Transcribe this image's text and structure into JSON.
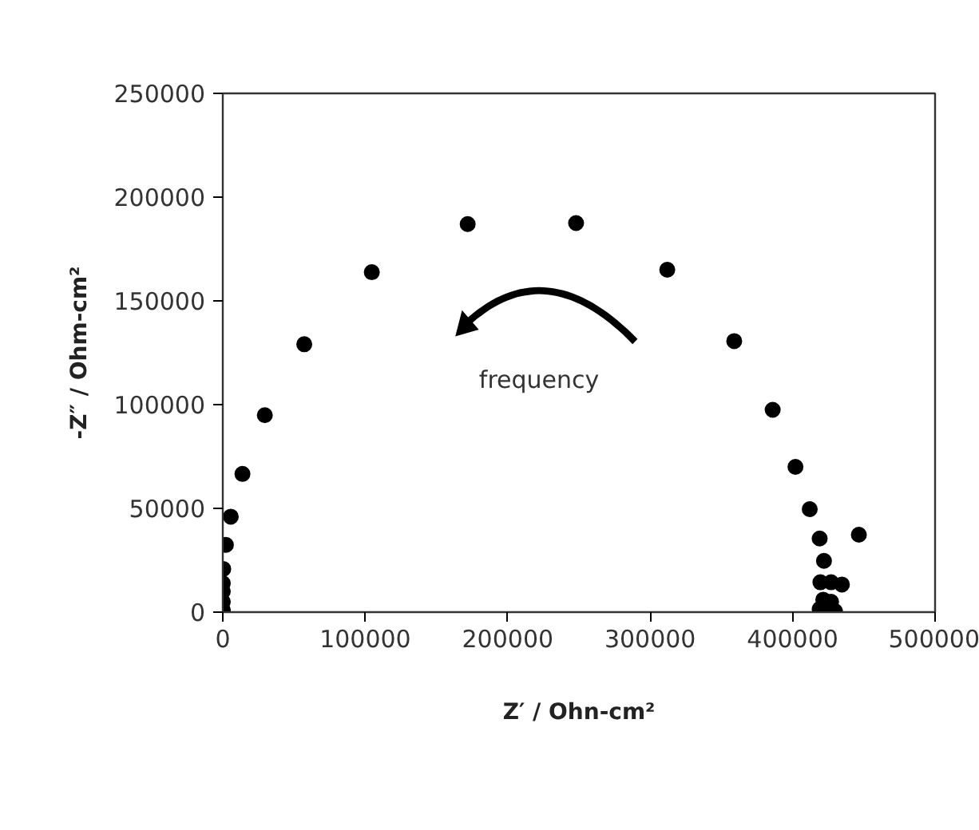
{
  "chart_data": {
    "type": "scatter",
    "xlabel": "Z′ / Ohn-cm²",
    "ylabel": "-Z″ / Ohm-cm²",
    "annotations": [
      "frequency"
    ],
    "x": [
      0,
      0,
      0,
      0,
      300,
      2200,
      5600,
      13800,
      29500,
      57200,
      104600,
      171900,
      248000,
      312000,
      359000,
      386000,
      402000,
      412000,
      419000,
      446500,
      422000,
      419500,
      427000,
      434600,
      421500,
      427000,
      429700,
      419000
    ],
    "series": [
      {
        "color": "#000000",
        "values": [
          1000,
          5000,
          10000,
          13900,
          20800,
          32400,
          46000,
          66600,
          94900,
          129100,
          163800,
          187000,
          187500,
          165000,
          130600,
          97500,
          70000,
          49600,
          35500,
          37300,
          24700,
          14400,
          14400,
          13300,
          6000,
          5000,
          500,
          1500
        ]
      }
    ],
    "marker": "circle",
    "grid": false,
    "xlim": [
      0,
      500000
    ],
    "ylim": [
      0,
      250000
    ],
    "xticks": [
      0,
      100000,
      200000,
      300000,
      400000,
      500000
    ],
    "yticks": [
      0,
      50000,
      100000,
      150000,
      200000,
      250000
    ]
  }
}
